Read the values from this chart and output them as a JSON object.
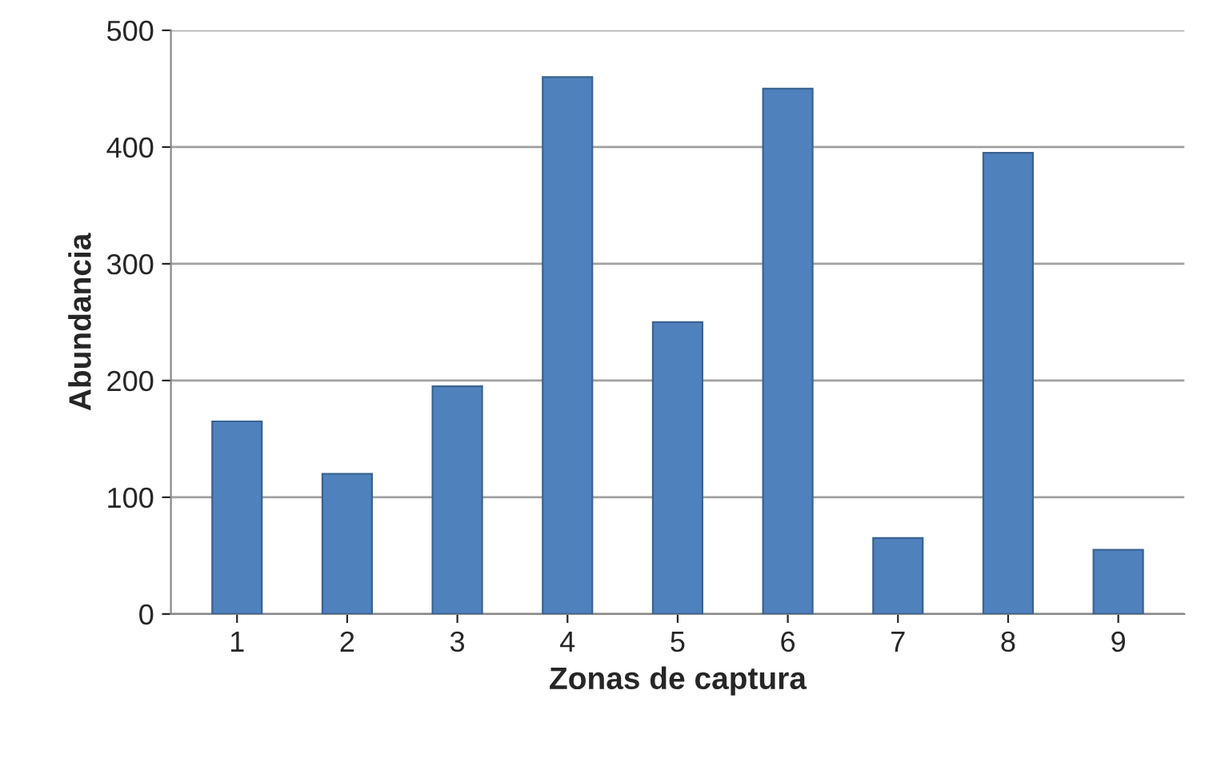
{
  "chart_data": {
    "type": "bar",
    "xlabel": "Zonas de captura",
    "ylabel": "Abundancia",
    "categories": [
      "1",
      "2",
      "3",
      "4",
      "5",
      "6",
      "7",
      "8",
      "9"
    ],
    "values": [
      165,
      120,
      195,
      460,
      250,
      450,
      65,
      395,
      55
    ],
    "color": "#4f81bd",
    "ylim": [
      0,
      500
    ],
    "yticks": [
      0,
      100,
      200,
      300,
      400,
      500
    ],
    "grid": "y"
  }
}
